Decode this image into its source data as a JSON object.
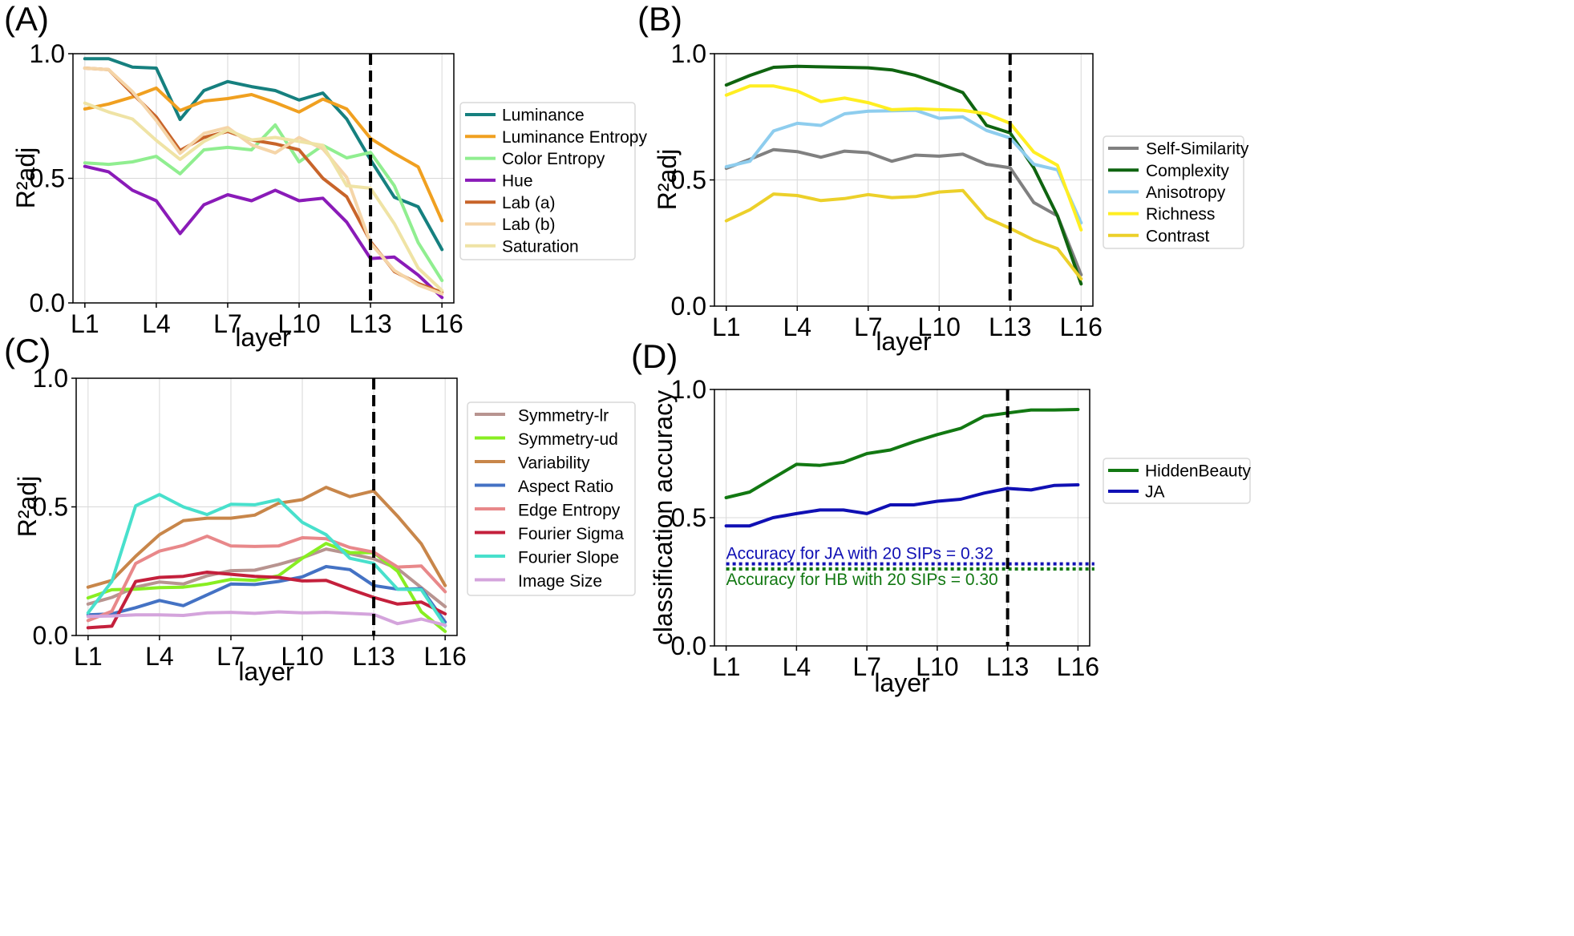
{
  "figure": {
    "colors": {
      "luminance": "#16807f",
      "luminance_entropy": "#f0a020",
      "color_entropy": "#90ee90",
      "hue": "#8a1bb8",
      "lab_a": "#c8642a",
      "lab_b": "#f5d5a8",
      "saturation": "#efe3a5",
      "self_similarity": "#808080",
      "complexity": "#0f6410",
      "anisotropy": "#8ecdee",
      "richness": "#ffee22",
      "contrast": "#ecd02a",
      "symmetry_lr": "#b89490",
      "symmetry_ud": "#88ee22",
      "variability": "#c8864a",
      "aspect_ratio": "#4472c4",
      "edge_entropy": "#e8888a",
      "fourier_sigma": "#c4203c",
      "fourier_slope": "#48e0cc",
      "image_size": "#d4a4dc",
      "hiddenbeauty": "#127812",
      "ja": "#1010b4"
    }
  },
  "chart_data": [
    {
      "id": "A",
      "panel_label": "(A)",
      "type": "line",
      "xlabel": "layer",
      "ylabel": "R²adj",
      "ylim": [
        0,
        1
      ],
      "yticks": [
        "0.0",
        "0.5",
        "1.0"
      ],
      "x": [
        1,
        2,
        3,
        4,
        5,
        6,
        7,
        8,
        9,
        10,
        11,
        12,
        13,
        14,
        15,
        16
      ],
      "xtick_labels": [
        "L1",
        "L4",
        "L7",
        "L10",
        "L13",
        "L16"
      ],
      "vline_layer": 13,
      "legend_position": "right",
      "series": [
        {
          "name": "Luminance",
          "color_key": "luminance",
          "values": [
            0.98,
            0.98,
            0.946,
            0.942,
            0.736,
            0.852,
            0.888,
            0.868,
            0.852,
            0.814,
            0.842,
            0.738,
            0.574,
            0.424,
            0.386,
            0.214
          ]
        },
        {
          "name": "Luminance Entropy",
          "color_key": "luminance_entropy",
          "values": [
            0.778,
            0.798,
            0.826,
            0.862,
            0.772,
            0.81,
            0.82,
            0.836,
            0.804,
            0.766,
            0.818,
            0.778,
            0.66,
            0.6,
            0.546,
            0.33
          ]
        },
        {
          "name": "Color Entropy",
          "color_key": "color_entropy",
          "values": [
            0.562,
            0.556,
            0.566,
            0.588,
            0.518,
            0.614,
            0.624,
            0.614,
            0.714,
            0.566,
            0.632,
            0.582,
            0.604,
            0.47,
            0.242,
            0.09
          ]
        },
        {
          "name": "Hue",
          "color_key": "hue",
          "values": [
            0.548,
            0.526,
            0.452,
            0.41,
            0.278,
            0.394,
            0.434,
            0.41,
            0.452,
            0.41,
            0.42,
            0.324,
            0.178,
            0.184,
            0.112,
            0.022
          ]
        },
        {
          "name": "Lab (a)",
          "color_key": "lab_a",
          "values": [
            0.942,
            0.936,
            0.84,
            0.746,
            0.612,
            0.664,
            0.688,
            0.654,
            0.638,
            0.614,
            0.5,
            0.426,
            0.246,
            0.126,
            0.078,
            0.042
          ]
        },
        {
          "name": "Lab (b)",
          "color_key": "lab_b",
          "values": [
            0.942,
            0.936,
            0.848,
            0.732,
            0.6,
            0.68,
            0.704,
            0.634,
            0.602,
            0.664,
            0.618,
            0.504,
            0.24,
            0.13,
            0.072,
            0.036
          ]
        },
        {
          "name": "Saturation",
          "color_key": "saturation",
          "values": [
            0.802,
            0.766,
            0.738,
            0.652,
            0.576,
            0.648,
            0.694,
            0.654,
            0.664,
            0.648,
            0.632,
            0.47,
            0.46,
            0.318,
            0.14,
            0.05
          ]
        }
      ]
    },
    {
      "id": "B",
      "panel_label": "(B)",
      "type": "line",
      "xlabel": "layer",
      "ylabel": "R²adj",
      "ylim": [
        0,
        1
      ],
      "yticks": [
        "0.0",
        "0.5",
        "1.0"
      ],
      "x": [
        1,
        2,
        3,
        4,
        5,
        6,
        7,
        8,
        9,
        10,
        11,
        12,
        13,
        14,
        15,
        16
      ],
      "xtick_labels": [
        "L1",
        "L4",
        "L7",
        "L10",
        "L13",
        "L16"
      ],
      "vline_layer": 13,
      "legend_position": "right",
      "series": [
        {
          "name": "Self-Similarity",
          "color_key": "self_similarity",
          "values": [
            0.546,
            0.582,
            0.62,
            0.612,
            0.59,
            0.614,
            0.608,
            0.574,
            0.598,
            0.594,
            0.602,
            0.562,
            0.548,
            0.41,
            0.358,
            0.124
          ]
        },
        {
          "name": "Complexity",
          "color_key": "complexity",
          "values": [
            0.876,
            0.914,
            0.946,
            0.95,
            0.948,
            0.946,
            0.944,
            0.936,
            0.914,
            0.882,
            0.846,
            0.716,
            0.686,
            0.548,
            0.358,
            0.088
          ]
        },
        {
          "name": "Anisotropy",
          "color_key": "anisotropy",
          "values": [
            0.552,
            0.574,
            0.694,
            0.724,
            0.716,
            0.762,
            0.772,
            0.774,
            0.776,
            0.744,
            0.75,
            0.696,
            0.666,
            0.562,
            0.54,
            0.33
          ]
        },
        {
          "name": "Richness",
          "color_key": "richness",
          "values": [
            0.836,
            0.872,
            0.872,
            0.852,
            0.81,
            0.824,
            0.806,
            0.778,
            0.782,
            0.778,
            0.776,
            0.762,
            0.724,
            0.61,
            0.558,
            0.302
          ]
        },
        {
          "name": "Contrast",
          "color_key": "contrast",
          "values": [
            0.338,
            0.382,
            0.444,
            0.438,
            0.418,
            0.426,
            0.442,
            0.43,
            0.434,
            0.452,
            0.458,
            0.35,
            0.308,
            0.262,
            0.228,
            0.108
          ]
        }
      ]
    },
    {
      "id": "C",
      "panel_label": "(C)",
      "type": "line",
      "xlabel": "layer",
      "ylabel": "R²adj",
      "ylim": [
        0,
        1
      ],
      "yticks": [
        "0.0",
        "0.5",
        "1.0"
      ],
      "x": [
        1,
        2,
        3,
        4,
        5,
        6,
        7,
        8,
        9,
        10,
        11,
        12,
        13,
        14,
        15,
        16
      ],
      "xtick_labels": [
        "L1",
        "L4",
        "L7",
        "L10",
        "L13",
        "L16"
      ],
      "vline_layer": 13,
      "legend_position": "right",
      "series": [
        {
          "name": "Symmetry-lr",
          "color_key": "symmetry_lr",
          "values": [
            0.122,
            0.148,
            0.188,
            0.208,
            0.2,
            0.232,
            0.252,
            0.254,
            0.276,
            0.302,
            0.336,
            0.318,
            0.298,
            0.26,
            0.186,
            0.112
          ]
        },
        {
          "name": "Symmetry-ud",
          "color_key": "symmetry_ud",
          "values": [
            0.146,
            0.178,
            0.18,
            0.186,
            0.188,
            0.2,
            0.218,
            0.214,
            0.232,
            0.3,
            0.358,
            0.322,
            0.322,
            0.25,
            0.092,
            0.016
          ]
        },
        {
          "name": "Variability",
          "color_key": "variability",
          "values": [
            0.188,
            0.214,
            0.308,
            0.392,
            0.446,
            0.456,
            0.456,
            0.468,
            0.514,
            0.528,
            0.576,
            0.54,
            0.562,
            0.464,
            0.356,
            0.194
          ]
        },
        {
          "name": "Aspect Ratio",
          "color_key": "aspect_ratio",
          "values": [
            0.08,
            0.084,
            0.108,
            0.136,
            0.116,
            0.158,
            0.2,
            0.198,
            0.21,
            0.228,
            0.268,
            0.256,
            0.194,
            0.18,
            0.182,
            0.052
          ]
        },
        {
          "name": "Edge Entropy",
          "color_key": "edge_entropy",
          "values": [
            0.058,
            0.094,
            0.28,
            0.328,
            0.35,
            0.386,
            0.348,
            0.346,
            0.348,
            0.38,
            0.376,
            0.342,
            0.324,
            0.266,
            0.27,
            0.17
          ]
        },
        {
          "name": "Fourier Sigma",
          "color_key": "fourier_sigma",
          "values": [
            0.03,
            0.036,
            0.21,
            0.226,
            0.23,
            0.246,
            0.238,
            0.23,
            0.226,
            0.212,
            0.214,
            0.18,
            0.148,
            0.122,
            0.13,
            0.084
          ]
        },
        {
          "name": "Fourier Slope",
          "color_key": "fourier_slope",
          "values": [
            0.088,
            0.21,
            0.504,
            0.548,
            0.5,
            0.47,
            0.51,
            0.508,
            0.528,
            0.44,
            0.392,
            0.3,
            0.28,
            0.18,
            0.178,
            0.038
          ]
        },
        {
          "name": "Image Size",
          "color_key": "image_size",
          "values": [
            0.074,
            0.076,
            0.08,
            0.08,
            0.078,
            0.088,
            0.09,
            0.086,
            0.092,
            0.088,
            0.09,
            0.086,
            0.082,
            0.046,
            0.064,
            0.04
          ]
        }
      ]
    },
    {
      "id": "D",
      "panel_label": "(D)",
      "type": "line",
      "xlabel": "layer",
      "ylabel": "classification accuracy",
      "ylim": [
        0,
        1
      ],
      "yticks": [
        "0.0",
        "0.5",
        "1.0"
      ],
      "x": [
        1,
        2,
        3,
        4,
        5,
        6,
        7,
        8,
        9,
        10,
        11,
        12,
        13,
        14,
        15,
        16
      ],
      "xtick_labels": [
        "L1",
        "L4",
        "L7",
        "L10",
        "L13",
        "L16"
      ],
      "vline_layer": 13,
      "legend_position": "right",
      "series": [
        {
          "name": "HiddenBeauty",
          "color_key": "hiddenbeauty",
          "values": [
            0.578,
            0.6,
            0.654,
            0.708,
            0.704,
            0.716,
            0.75,
            0.764,
            0.796,
            0.824,
            0.848,
            0.896,
            0.908,
            0.92,
            0.92,
            0.922
          ]
        },
        {
          "name": "JA",
          "color_key": "ja",
          "values": [
            0.468,
            0.468,
            0.5,
            0.516,
            0.53,
            0.53,
            0.516,
            0.55,
            0.55,
            0.564,
            0.572,
            0.596,
            0.614,
            0.608,
            0.626,
            0.628
          ]
        }
      ],
      "baselines": [
        {
          "label": "Accuracy for JA with 20 SIPs = 0.32",
          "value": 0.32,
          "color_key": "ja"
        },
        {
          "label": "Accuracy for HB with 20 SIPs = 0.30",
          "value": 0.3,
          "color_key": "hiddenbeauty"
        }
      ]
    }
  ]
}
